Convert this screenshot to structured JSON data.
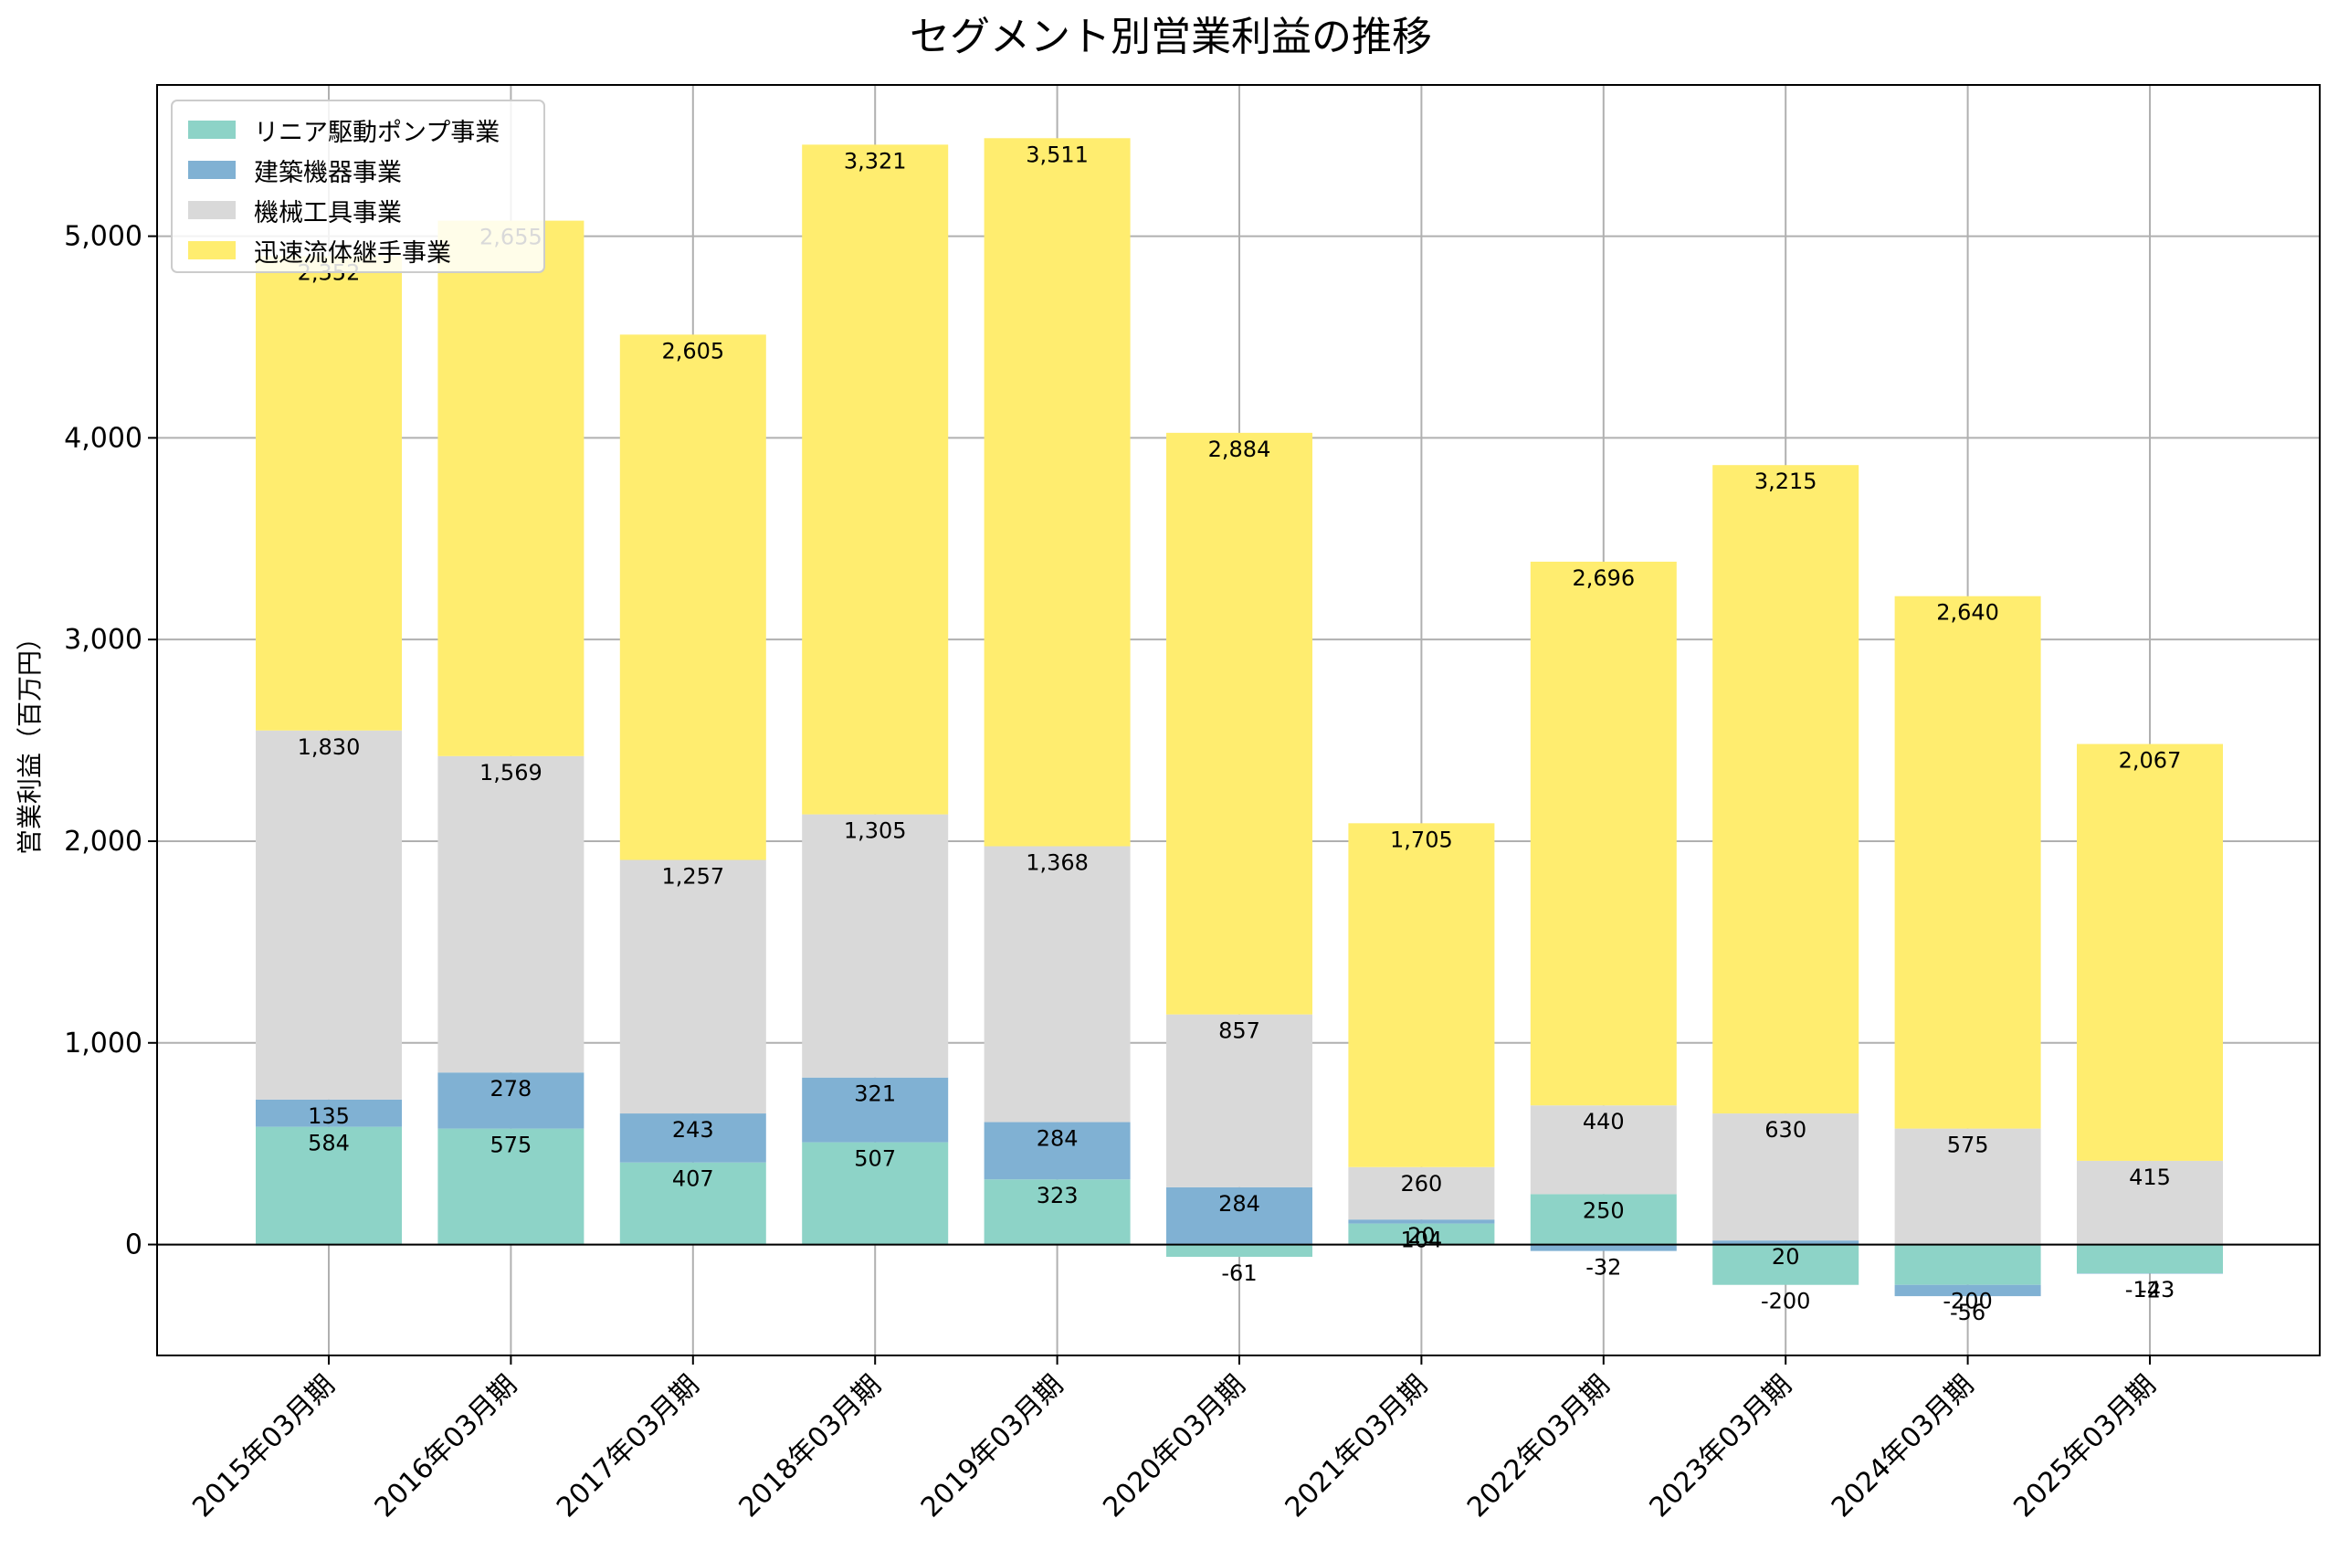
{
  "chart_data": {
    "type": "bar",
    "stacked": true,
    "title": "セグメント別営業利益の推移",
    "ylabel": "営業利益（百万円）",
    "xlabel": "",
    "ylim": [
      -550,
      5750
    ],
    "yticks": [
      0,
      1000,
      2000,
      3000,
      4000,
      5000
    ],
    "ytick_labels": [
      "0",
      "1,000",
      "2,000",
      "3,000",
      "4,000",
      "5,000"
    ],
    "grid": true,
    "legend_position": "top-left",
    "categories": [
      "2015年03月期",
      "2016年03月期",
      "2017年03月期",
      "2018年03月期",
      "2019年03月期",
      "2020年03月期",
      "2021年03月期",
      "2022年03月期",
      "2023年03月期",
      "2024年03月期",
      "2025年03月期"
    ],
    "series": [
      {
        "name": "リニア駆動ポンプ事業",
        "color": "#8dd3c7",
        "values": [
          584,
          575,
          407,
          507,
          323,
          -61,
          104,
          250,
          -200,
          -200,
          -143
        ]
      },
      {
        "name": "建築機器事業",
        "color": "#80b1d3",
        "values": [
          135,
          278,
          243,
          321,
          284,
          284,
          20,
          -32,
          20,
          -56,
          -2
        ]
      },
      {
        "name": "機械工具事業",
        "color": "#d9d9d9",
        "values": [
          1830,
          1569,
          1257,
          1305,
          1368,
          857,
          260,
          440,
          630,
          575,
          415
        ]
      },
      {
        "name": "迅速流体継手事業",
        "color": "#ffed6f",
        "values": [
          2352,
          2655,
          2605,
          3321,
          3511,
          2884,
          1705,
          2696,
          3215,
          2640,
          2067
        ]
      }
    ]
  }
}
